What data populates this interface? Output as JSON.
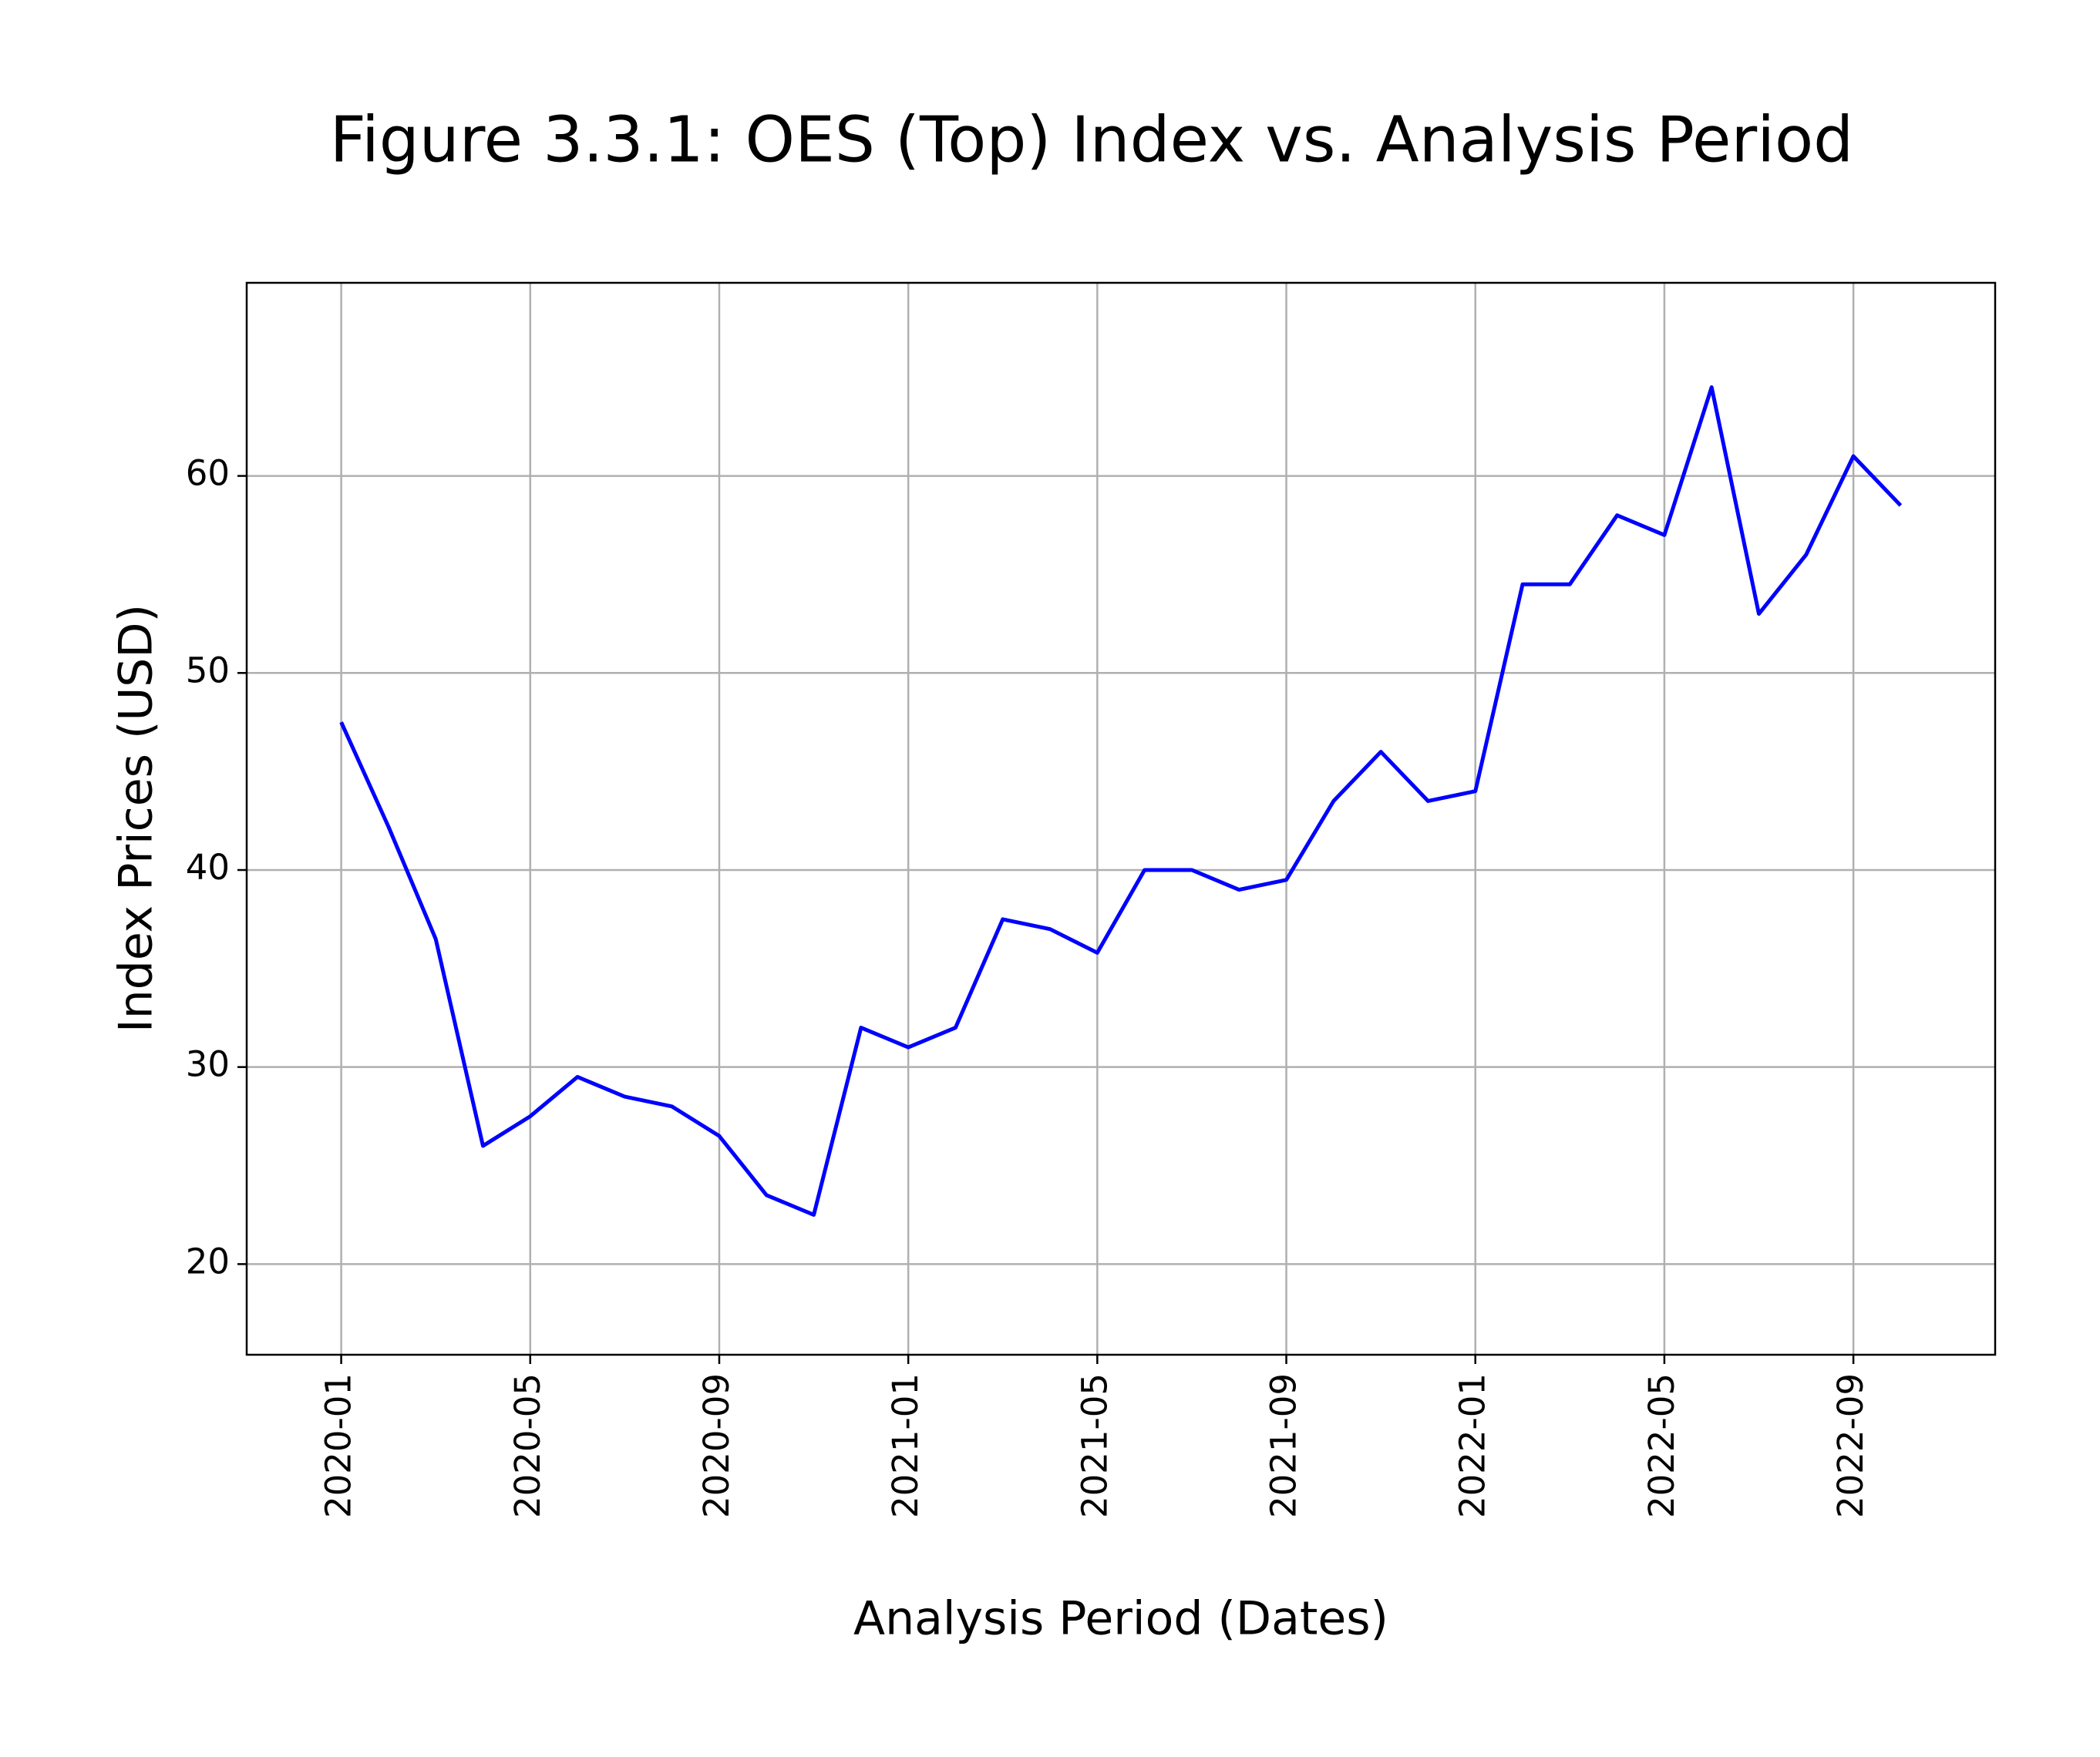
{
  "chart_data": {
    "type": "line",
    "title": "Figure 3.3.1: OES (Top) Index vs. Analysis Period",
    "x_label": "Analysis Period (Dates)",
    "y_label": "Index Prices (USD)",
    "x": [
      "2020-01",
      "2020-02",
      "2020-03",
      "2020-04",
      "2020-05",
      "2020-06",
      "2020-07",
      "2020-08",
      "2020-09",
      "2020-10",
      "2020-11",
      "2020-12",
      "2021-01",
      "2021-02",
      "2021-03",
      "2021-04",
      "2021-05",
      "2021-06",
      "2021-07",
      "2021-08",
      "2021-09",
      "2021-10",
      "2021-11",
      "2021-12",
      "2022-01",
      "2022-02",
      "2022-03",
      "2022-04",
      "2022-05",
      "2022-06",
      "2022-07",
      "2022-08",
      "2022-09",
      "2022-10"
    ],
    "series": [
      {
        "name": "OES (Top) Index",
        "color": "#0000ff",
        "values": [
          47.5,
          42.2,
          36.5,
          26,
          27.5,
          29.5,
          28.5,
          28,
          26.5,
          23.5,
          22.5,
          32,
          31,
          32,
          37.5,
          37,
          35.8,
          40,
          40,
          39,
          39.5,
          43.5,
          46,
          43.5,
          44,
          54.5,
          54.5,
          58,
          57,
          64.5,
          53,
          56,
          61,
          58.5
        ]
      }
    ],
    "xlim": [
      "2019-11",
      "2022-12"
    ],
    "xticks": [
      "2020-01",
      "2020-05",
      "2020-09",
      "2021-01",
      "2021-05",
      "2021-09",
      "2022-01",
      "2022-05",
      "2022-09"
    ],
    "ylim": [
      15.4,
      69.8
    ],
    "yticks": [
      20,
      30,
      40,
      50,
      60
    ],
    "grid": true
  }
}
